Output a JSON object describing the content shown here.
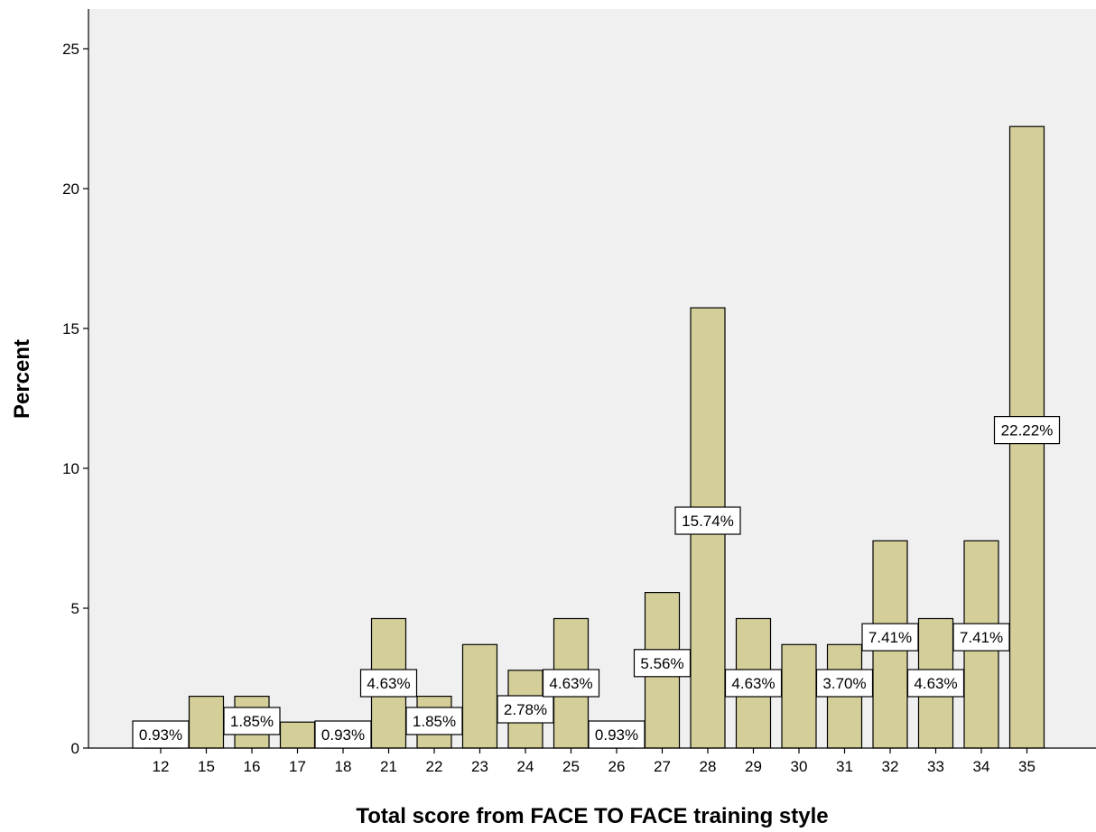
{
  "chart_data": {
    "type": "bar",
    "xlabel": "Total score from FACE TO FACE training style",
    "ylabel": "Percent",
    "ylim": [
      0,
      25
    ],
    "yticks": [
      0,
      5,
      10,
      15,
      20,
      25
    ],
    "categories": [
      "12",
      "15",
      "16",
      "17",
      "18",
      "21",
      "22",
      "23",
      "24",
      "25",
      "26",
      "27",
      "28",
      "29",
      "30",
      "31",
      "32",
      "33",
      "34",
      "35"
    ],
    "values": [
      0.93,
      1.85,
      1.85,
      0.93,
      0.93,
      4.63,
      1.85,
      3.7,
      2.78,
      4.63,
      0.93,
      5.56,
      15.74,
      4.63,
      3.7,
      3.7,
      7.41,
      4.63,
      7.41,
      22.22
    ],
    "data_labels": [
      "0.93%",
      "",
      "1.85%",
      "",
      "0.93%",
      "4.63%",
      "1.85%",
      "",
      "2.78%",
      "4.63%",
      "0.93%",
      "5.56%",
      "15.74%",
      "4.63%",
      "",
      "3.70%",
      "7.41%",
      "4.63%",
      "7.41%",
      "22.22%"
    ],
    "grid": false,
    "legend": "none",
    "colors": {
      "bar_fill": "#d4cf99",
      "bar_stroke": "#000000",
      "plot_background": "#f0f0f0",
      "page_background": "#ffffff",
      "label_box": "#ffffff"
    }
  }
}
